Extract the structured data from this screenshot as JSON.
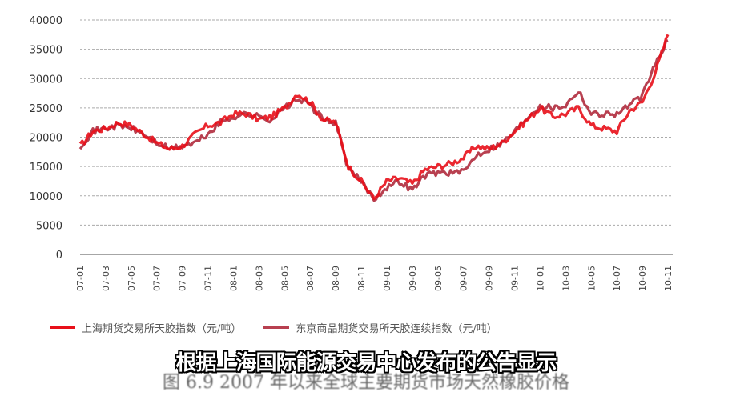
{
  "chart_data": {
    "type": "line",
    "title": "图 6.9 2007 年以来全球主要期货市场天然橡胶价格",
    "xlabel": "",
    "ylabel": "",
    "ylim": [
      0,
      40000
    ],
    "yticks": [
      0,
      5000,
      10000,
      15000,
      20000,
      25000,
      30000,
      35000,
      40000
    ],
    "xtick_labels": [
      "07-01",
      "07-03",
      "07-05",
      "07-07",
      "07-09",
      "07-11",
      "08-01",
      "08-03",
      "08-05",
      "08-07",
      "08-09",
      "08-11",
      "09-01",
      "09-03",
      "09-05",
      "09-07",
      "09-09",
      "09-11",
      "10-01",
      "10-03",
      "10-05",
      "10-07",
      "10-09",
      "10-11"
    ],
    "grid": "horizontal dashed",
    "legend_position": "bottom",
    "x": [
      "07-01",
      "07-02",
      "07-03",
      "07-04",
      "07-05",
      "07-06",
      "07-07",
      "07-08",
      "07-09",
      "07-10",
      "07-11",
      "07-12",
      "08-01",
      "08-02",
      "08-03",
      "08-04",
      "08-05",
      "08-06",
      "08-07",
      "08-08",
      "08-09",
      "08-10",
      "08-11",
      "08-12",
      "09-01",
      "09-02",
      "09-03",
      "09-04",
      "09-05",
      "09-06",
      "09-07",
      "09-08",
      "09-09",
      "09-10",
      "09-11",
      "09-12",
      "10-01",
      "10-02",
      "10-03",
      "10-04",
      "10-05",
      "10-06",
      "10-07",
      "10-08",
      "10-09",
      "10-10",
      "10-11"
    ],
    "series": [
      {
        "name": "上海期货交易所天胶指数（元/吨）",
        "color": "#e8101a",
        "values": [
          18500,
          21000,
          21500,
          22500,
          22000,
          20500,
          19000,
          18000,
          18500,
          20500,
          22000,
          22500,
          24000,
          24000,
          23000,
          23500,
          25000,
          27500,
          26000,
          23000,
          22500,
          15000,
          12500,
          9500,
          12500,
          13000,
          12000,
          14500,
          15000,
          15500,
          16500,
          18500,
          18000,
          19000,
          21000,
          23000,
          25000,
          23500,
          24000,
          25000,
          22000,
          21500,
          21000,
          24500,
          26000,
          31000,
          37500
        ]
      },
      {
        "name": "东京商品期货交易所天胶连续指数（元/吨）",
        "color": "#b84050",
        "values": [
          18500,
          21000,
          21500,
          22000,
          21500,
          20500,
          19000,
          18000,
          18500,
          19000,
          20500,
          22500,
          23500,
          24000,
          23500,
          23000,
          25000,
          26500,
          25500,
          23000,
          22500,
          14500,
          12500,
          9500,
          11500,
          12500,
          11000,
          13500,
          14000,
          14000,
          14000,
          17000,
          18000,
          19000,
          21000,
          23500,
          25500,
          25000,
          25500,
          28000,
          24000,
          24000,
          24000,
          25500,
          27000,
          32500,
          36500
        ]
      }
    ]
  },
  "legend": {
    "items": [
      {
        "label": "上海期货交易所天胶指数（元/吨）",
        "color": "#e8101a"
      },
      {
        "label": "东京商品期货交易所天胶连续指数（元/吨）",
        "color": "#b84050"
      }
    ]
  },
  "overlay": {
    "subtitle": "根据上海国际能源交易中心发布的公告显示"
  },
  "caption": {
    "text": "图 6.9   2007 年以来全球主要期货市场天然橡胶价格"
  }
}
